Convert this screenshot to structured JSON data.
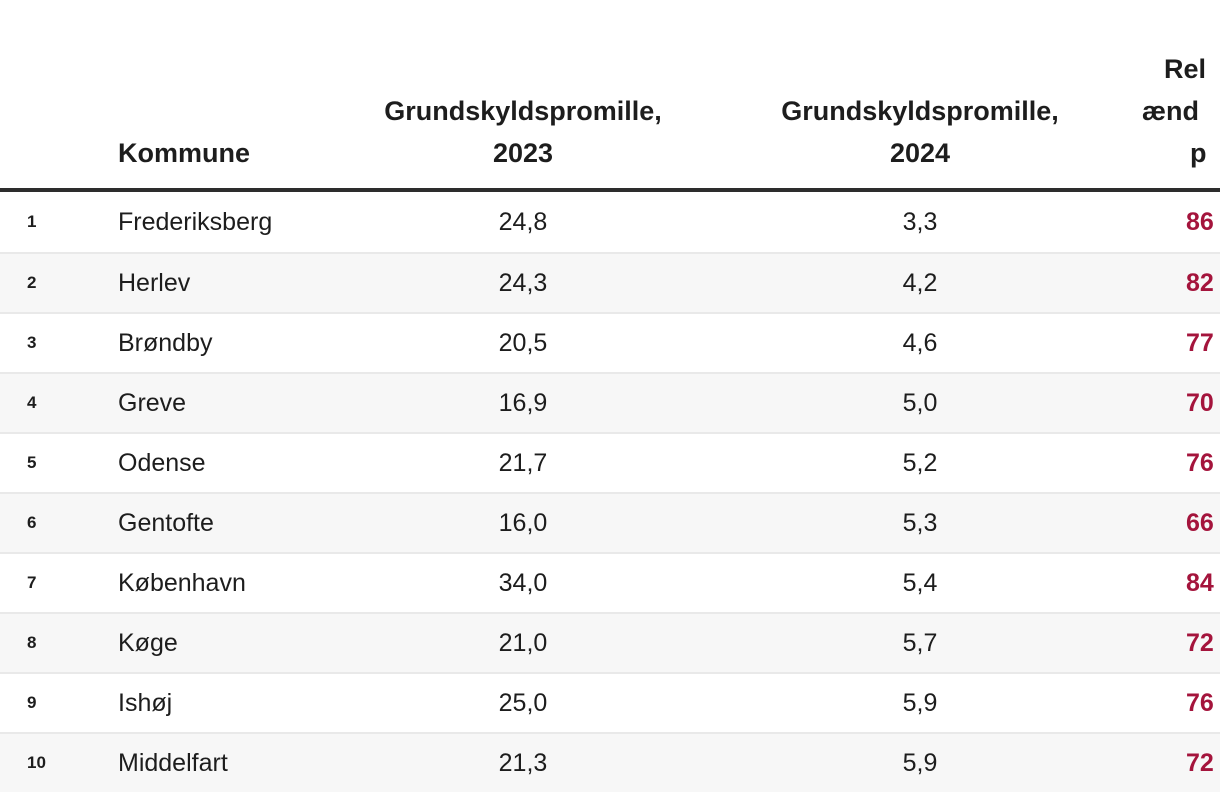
{
  "header": {
    "kommune": "Kommune",
    "grundskyld_2023_line1": "Grundskyldspromille,",
    "grundskyld_2023_line2": "2023",
    "grundskyld_2024_line1": "Grundskyldspromille,",
    "grundskyld_2024_line2": "2024",
    "change_fragment_line1": "Rel",
    "change_fragment_line2": "ænd",
    "change_fragment_line3": "p",
    "note": "right-most column (header and red values) is cut off by the right edge of the screenshot"
  },
  "rows": [
    {
      "rank": "1",
      "kommune": "Frederiksberg",
      "v2023": "24,8",
      "v2024": "3,3",
      "change_visible": "86"
    },
    {
      "rank": "2",
      "kommune": "Herlev",
      "v2023": "24,3",
      "v2024": "4,2",
      "change_visible": "82"
    },
    {
      "rank": "3",
      "kommune": "Brøndby",
      "v2023": "20,5",
      "v2024": "4,6",
      "change_visible": "77"
    },
    {
      "rank": "4",
      "kommune": "Greve",
      "v2023": "16,9",
      "v2024": "5,0",
      "change_visible": "70"
    },
    {
      "rank": "5",
      "kommune": "Odense",
      "v2023": "21,7",
      "v2024": "5,2",
      "change_visible": "76"
    },
    {
      "rank": "6",
      "kommune": "Gentofte",
      "v2023": "16,0",
      "v2024": "5,3",
      "change_visible": "66"
    },
    {
      "rank": "7",
      "kommune": "København",
      "v2023": "34,0",
      "v2024": "5,4",
      "change_visible": "84"
    },
    {
      "rank": "8",
      "kommune": "Køge",
      "v2023": "21,0",
      "v2024": "5,7",
      "change_visible": "72"
    },
    {
      "rank": "9",
      "kommune": "Ishøj",
      "v2023": "25,0",
      "v2024": "5,9",
      "change_visible": "76"
    },
    {
      "rank": "10",
      "kommune": "Middelfart",
      "v2023": "21,3",
      "v2024": "5,9",
      "change_visible": "72"
    }
  ],
  "colors": {
    "accent_red": "#a4143c",
    "stripe": "#f7f7f7",
    "separator": "#e9e9e9",
    "header_rule": "#2d2d2d",
    "text": "#1d1d1d"
  },
  "chart_data": {
    "type": "table",
    "columns": [
      "#",
      "Kommune",
      "Grundskyldspromille, 2023",
      "Grundskyldspromille, 2024",
      "Rel/ænd/p (header truncated at right edge)"
    ],
    "rows": [
      [
        "1",
        "Frederiksberg",
        "24,8",
        "3,3",
        "86"
      ],
      [
        "2",
        "Herlev",
        "24,3",
        "4,2",
        "82"
      ],
      [
        "3",
        "Brøndby",
        "20,5",
        "4,6",
        "77"
      ],
      [
        "4",
        "Greve",
        "16,9",
        "5,0",
        "70"
      ],
      [
        "5",
        "Odense",
        "21,7",
        "5,2",
        "76"
      ],
      [
        "6",
        "Gentofte",
        "16,0",
        "5,3",
        "66"
      ],
      [
        "7",
        "København",
        "34,0",
        "5,4",
        "84"
      ],
      [
        "8",
        "Køge",
        "21,0",
        "5,7",
        "72"
      ],
      [
        "9",
        "Ishøj",
        "25,0",
        "5,9",
        "76"
      ],
      [
        "10",
        "Middelfart",
        "21,3",
        "5,9",
        "72"
      ]
    ],
    "layout_hints": {
      "zebra_striping": "even rows light gray #f7f7f7",
      "last_column_color": "dark crimson, bold",
      "decimal_separator": "comma (Danish locale)",
      "header_rule": "thick dark line under header",
      "last_column_clipped": true
    }
  }
}
